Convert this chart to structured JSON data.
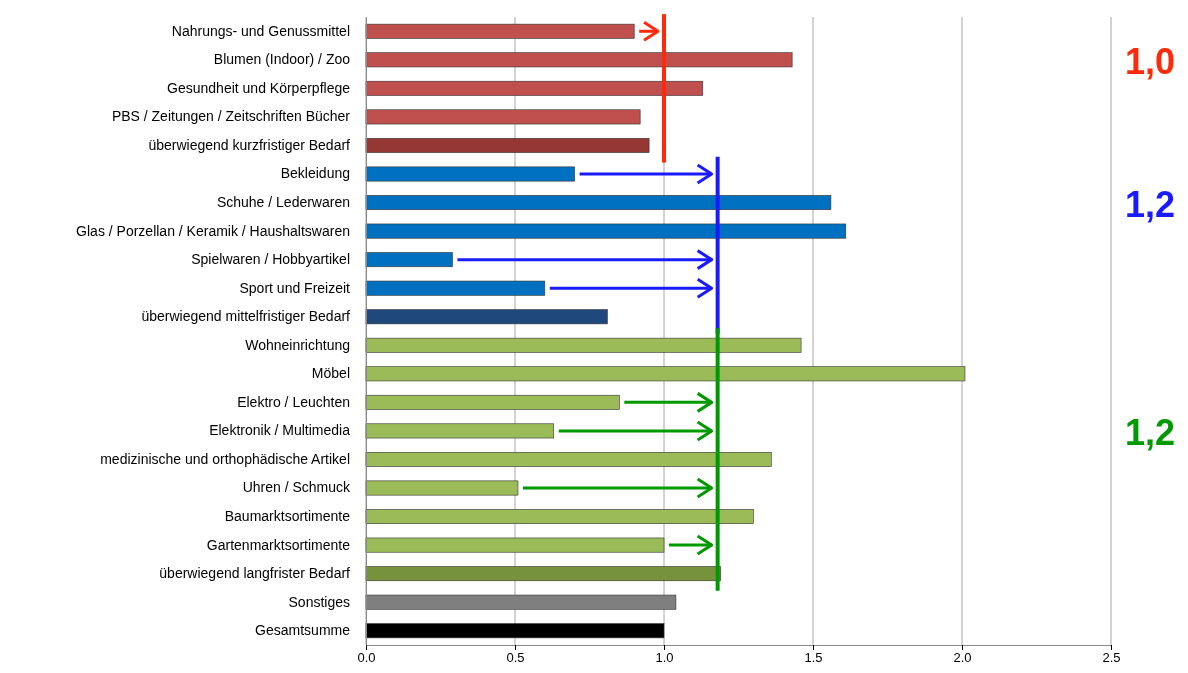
{
  "chart_data": {
    "type": "bar",
    "orientation": "horizontal",
    "categories": [
      "Nahrungs- und Genussmittel",
      "Blumen (Indoor) / Zoo",
      "Gesundheit und Körperpflege",
      "PBS / Zeitungen / Zeitschriften Bücher",
      "überwiegend kurzfristiger Bedarf",
      "Bekleidung",
      "Schuhe / Lederwaren",
      "Glas / Porzellan / Keramik / Haushaltswaren",
      "Spielwaren / Hobbyartikel",
      "Sport und Freizeit",
      "überwiegend mittelfristiger Bedarf",
      "Wohneinrichtung",
      "Möbel",
      "Elektro / Leuchten",
      "Elektronik / Multimedia",
      "medizinische und orthophädische Artikel",
      "Uhren / Schmuck",
      "Baumarktsortimente ",
      "Gartenmarktsortimente",
      "überwiegend langfrister Bedarf",
      "Sonstiges",
      "Gesamtsumme"
    ],
    "values": [
      0.9,
      1.43,
      1.13,
      0.92,
      0.95,
      0.7,
      1.56,
      1.61,
      0.29,
      0.6,
      0.81,
      1.46,
      2.01,
      0.85,
      0.63,
      1.36,
      0.51,
      1.3,
      1.0,
      1.19,
      1.04,
      1.0
    ],
    "colors": [
      "#c0504d",
      "#c0504d",
      "#c0504d",
      "#c0504d",
      "#953735",
      "#0070c0",
      "#0070c0",
      "#0070c0",
      "#0070c0",
      "#0070c0",
      "#1f497d",
      "#9bbb59",
      "#9bbb59",
      "#9bbb59",
      "#9bbb59",
      "#9bbb59",
      "#9bbb59",
      "#9bbb59",
      "#9bbb59",
      "#76923c",
      "#7f7f7f",
      "#000000"
    ],
    "xlim": [
      0,
      2.5
    ],
    "xticks": [
      {
        "value": 0,
        "label": "0.0"
      },
      {
        "value": 0.5,
        "label": "0.5"
      },
      {
        "value": 1,
        "label": "1.0"
      },
      {
        "value": 1.5,
        "label": "1.5"
      },
      {
        "value": 2,
        "label": "2.0"
      },
      {
        "value": 2.5,
        "label": "2.5"
      }
    ],
    "grid": "x",
    "ref_lines": [
      {
        "axis": "x",
        "value": 1.0,
        "label": "1,0",
        "color": "#ff2a0a"
      },
      {
        "axis": "x",
        "value": 1.18,
        "label": "1,2",
        "color": "#1a1aff"
      },
      {
        "axis": "x",
        "value": 1.18,
        "label": "1,2",
        "color": "#009900"
      }
    ]
  }
}
